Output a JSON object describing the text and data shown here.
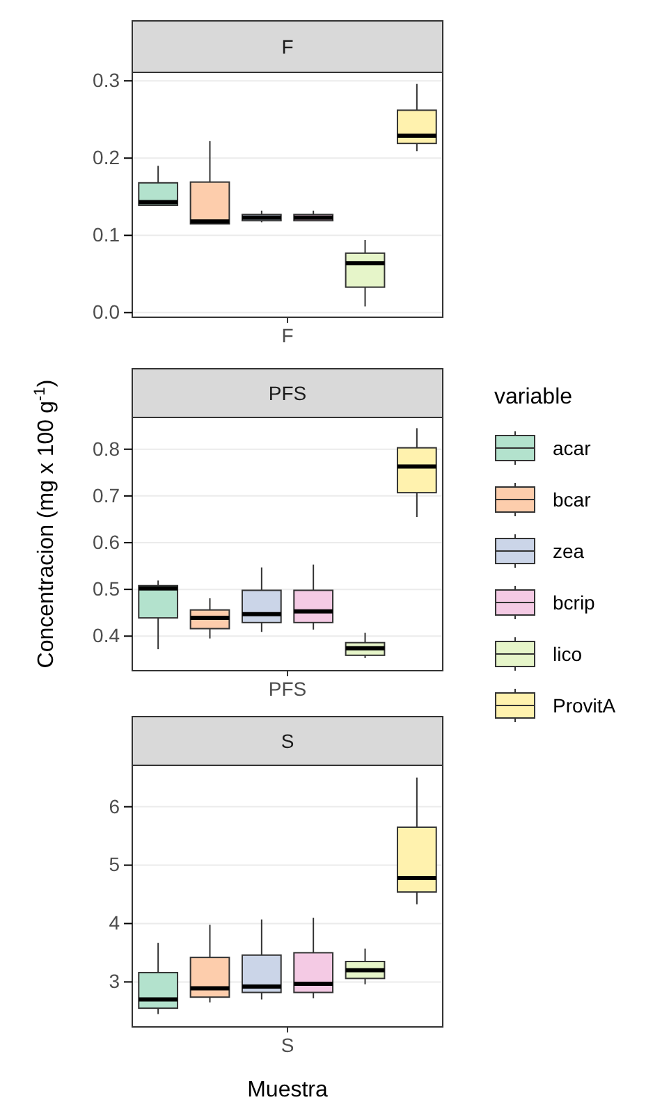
{
  "chart_data": [
    {
      "type": "box",
      "title": "F",
      "categories": [
        null,
        null,
        null,
        null,
        null,
        null
      ],
      "annotations": [
        "F"
      ],
      "ylim": [
        -0.006,
        0.311
      ],
      "yticks": [
        {
          "value": 0,
          "label": "0.0"
        },
        0.1,
        0.2,
        0.3
      ],
      "grid": "y",
      "series": [
        {
          "color": "#b3e2cd",
          "boxes": [
            {
              "low": 0.139,
              "q1": 0.139,
              "median": 0.143,
              "q3": 0.168,
              "high": 0.19
            },
            null,
            null,
            null,
            null,
            null
          ]
        },
        {
          "color": "#fdcdac",
          "boxes": [
            null,
            {
              "low": 0.115,
              "q1": 0.115,
              "median": 0.118,
              "q3": 0.169,
              "high": 0.222
            },
            null,
            null,
            null,
            null
          ]
        },
        {
          "color": "#cbd5e8",
          "boxes": [
            null,
            null,
            {
              "low": 0.117,
              "q1": 0.119,
              "median": 0.123,
              "q3": 0.127,
              "high": 0.132
            },
            null,
            null,
            null
          ]
        },
        {
          "color": "#f4cae4",
          "boxes": [
            null,
            null,
            null,
            {
              "low": 0.119,
              "q1": 0.119,
              "median": 0.123,
              "q3": 0.127,
              "high": 0.132
            },
            null,
            null
          ]
        },
        {
          "color": "#e6f5c9",
          "boxes": [
            null,
            null,
            null,
            null,
            {
              "low": 0.008,
              "q1": 0.033,
              "median": 0.064,
              "q3": 0.077,
              "high": 0.094
            },
            null
          ]
        },
        {
          "color": "#fff2ae",
          "boxes": [
            null,
            null,
            null,
            null,
            null,
            {
              "low": 0.209,
              "q1": 0.219,
              "median": 0.229,
              "q3": 0.262,
              "high": 0.296
            }
          ]
        }
      ]
    },
    {
      "type": "box",
      "title": "PFS",
      "categories": [
        null,
        null,
        null,
        null,
        null,
        null
      ],
      "annotations": [
        "PFS"
      ],
      "ylabel": "Concentracion (mg x 100 g$^{-1}$)",
      "legend_title": "variable",
      "legend": "right",
      "ylim": [
        0.326,
        0.868
      ],
      "yticks": [
        0.4,
        0.5,
        0.6,
        0.7,
        0.8
      ],
      "grid": "y",
      "series": [
        {
          "name": "acar",
          "color": "#b3e2cd",
          "boxes": [
            {
              "low": 0.372,
              "q1": 0.439,
              "median": 0.502,
              "q3": 0.508,
              "high": 0.519
            },
            null,
            null,
            null,
            null,
            null
          ]
        },
        {
          "name": "bcar",
          "color": "#fdcdac",
          "boxes": [
            null,
            {
              "low": 0.395,
              "q1": 0.416,
              "median": 0.439,
              "q3": 0.456,
              "high": 0.481
            },
            null,
            null,
            null,
            null
          ]
        },
        {
          "name": "zea",
          "color": "#cbd5e8",
          "boxes": [
            null,
            null,
            {
              "low": 0.409,
              "q1": 0.429,
              "median": 0.447,
              "q3": 0.498,
              "high": 0.547
            },
            null,
            null,
            null
          ]
        },
        {
          "name": "bcrip",
          "color": "#f4cae4",
          "boxes": [
            null,
            null,
            null,
            {
              "low": 0.414,
              "q1": 0.429,
              "median": 0.453,
              "q3": 0.498,
              "high": 0.553
            },
            null,
            null
          ]
        },
        {
          "name": "lico",
          "color": "#e6f5c9",
          "boxes": [
            null,
            null,
            null,
            null,
            {
              "low": 0.353,
              "q1": 0.359,
              "median": 0.374,
              "q3": 0.386,
              "high": 0.407
            },
            null
          ]
        },
        {
          "name": "ProvitA",
          "color": "#fff2ae",
          "boxes": [
            null,
            null,
            null,
            null,
            null,
            {
              "low": 0.655,
              "q1": 0.707,
              "median": 0.763,
              "q3": 0.803,
              "high": 0.845
            }
          ]
        }
      ]
    },
    {
      "type": "box",
      "title": "S",
      "categories": [
        null,
        null,
        null,
        null,
        null,
        null
      ],
      "annotations": [
        "S"
      ],
      "xlabel": "Muestra",
      "ylim": [
        2.23,
        6.71
      ],
      "yticks": [
        3,
        4,
        5,
        6
      ],
      "grid": "y",
      "series": [
        {
          "color": "#b3e2cd",
          "boxes": [
            {
              "low": 2.45,
              "q1": 2.55,
              "median": 2.7,
              "q3": 3.16,
              "high": 3.67
            },
            null,
            null,
            null,
            null,
            null
          ]
        },
        {
          "color": "#fdcdac",
          "boxes": [
            null,
            {
              "low": 2.65,
              "q1": 2.74,
              "median": 2.89,
              "q3": 3.42,
              "high": 3.98
            },
            null,
            null,
            null,
            null
          ]
        },
        {
          "color": "#cbd5e8",
          "boxes": [
            null,
            null,
            {
              "low": 2.7,
              "q1": 2.82,
              "median": 2.92,
              "q3": 3.46,
              "high": 4.07
            },
            null,
            null,
            null
          ]
        },
        {
          "color": "#f4cae4",
          "boxes": [
            null,
            null,
            null,
            {
              "low": 2.72,
              "q1": 2.82,
              "median": 2.97,
              "q3": 3.5,
              "high": 4.1
            },
            null,
            null
          ]
        },
        {
          "color": "#e6f5c9",
          "boxes": [
            null,
            null,
            null,
            null,
            {
              "low": 2.96,
              "q1": 3.06,
              "median": 3.2,
              "q3": 3.35,
              "high": 3.57
            },
            null
          ]
        },
        {
          "color": "#fff2ae",
          "boxes": [
            null,
            null,
            null,
            null,
            null,
            {
              "low": 4.33,
              "q1": 4.54,
              "median": 4.78,
              "q3": 5.65,
              "high": 6.5
            }
          ]
        }
      ]
    }
  ]
}
